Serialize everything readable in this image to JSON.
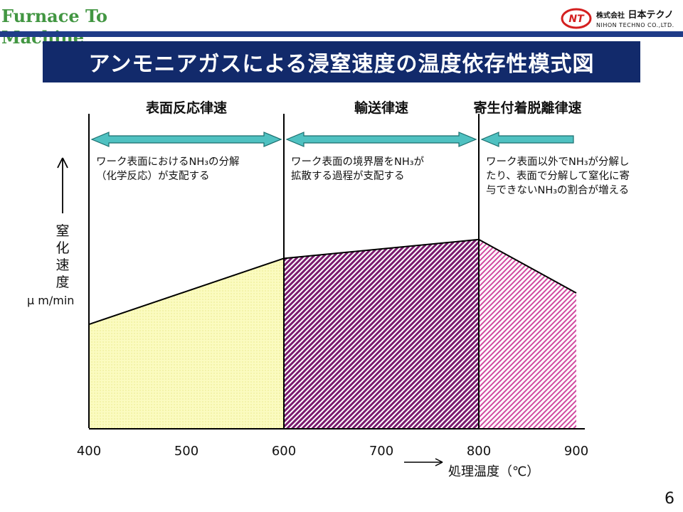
{
  "header": {
    "watermark": "Furnace To Machine",
    "logo_jp_prefix": "株式会社",
    "logo_jp_name": "日本テクノ",
    "logo_en": "NIHON TECHNO CO.,LTD.",
    "title": "アンモニアガスによる浸窒速度の温度依存性模式図"
  },
  "page_number": "6",
  "colors": {
    "title_bg": "#122a6b",
    "arrow_fill": "#4fc1c1",
    "region1": "#fafab0",
    "region2": "#7a1a6e",
    "region3": "#d04aa0",
    "watermark": "#2e8b2e"
  },
  "chart_data": {
    "type": "area",
    "title": "アンモニアガスによる浸窒速度の温度依存性模式図",
    "xlabel": "処理温度（℃）",
    "ylabel_lines": [
      "窒",
      "化",
      "速",
      "度"
    ],
    "yunit": "μ m/min",
    "xlim": [
      400,
      900
    ],
    "x_ticks": [
      400,
      500,
      600,
      700,
      800,
      900
    ],
    "x_tick_labels": [
      "400",
      "500",
      "600",
      "700",
      "800",
      "900"
    ],
    "ylim": [
      0,
      100
    ],
    "points": [
      {
        "x": 400,
        "y": 33
      },
      {
        "x": 600,
        "y": 54
      },
      {
        "x": 800,
        "y": 60
      },
      {
        "x": 900,
        "y": 43
      }
    ],
    "regions": [
      {
        "name": "表面反応律速",
        "from": 400,
        "to": 600,
        "note_lines": [
          "ワーク表面におけるNH₃の分解",
          "（化学反応）が支配する"
        ]
      },
      {
        "name": "輸送律速",
        "from": 600,
        "to": 800,
        "note_lines": [
          "ワーク表面の境界層をNH₃が",
          "拡散する過程が支配する"
        ]
      },
      {
        "name": "寄生付着脱離律速",
        "from": 800,
        "to": 900,
        "note_lines": [
          "ワーク表面以外でNH₃が分解し",
          "たり、表面で分解して窒化に寄",
          "与できないNH₃の割合が増える"
        ]
      }
    ]
  }
}
